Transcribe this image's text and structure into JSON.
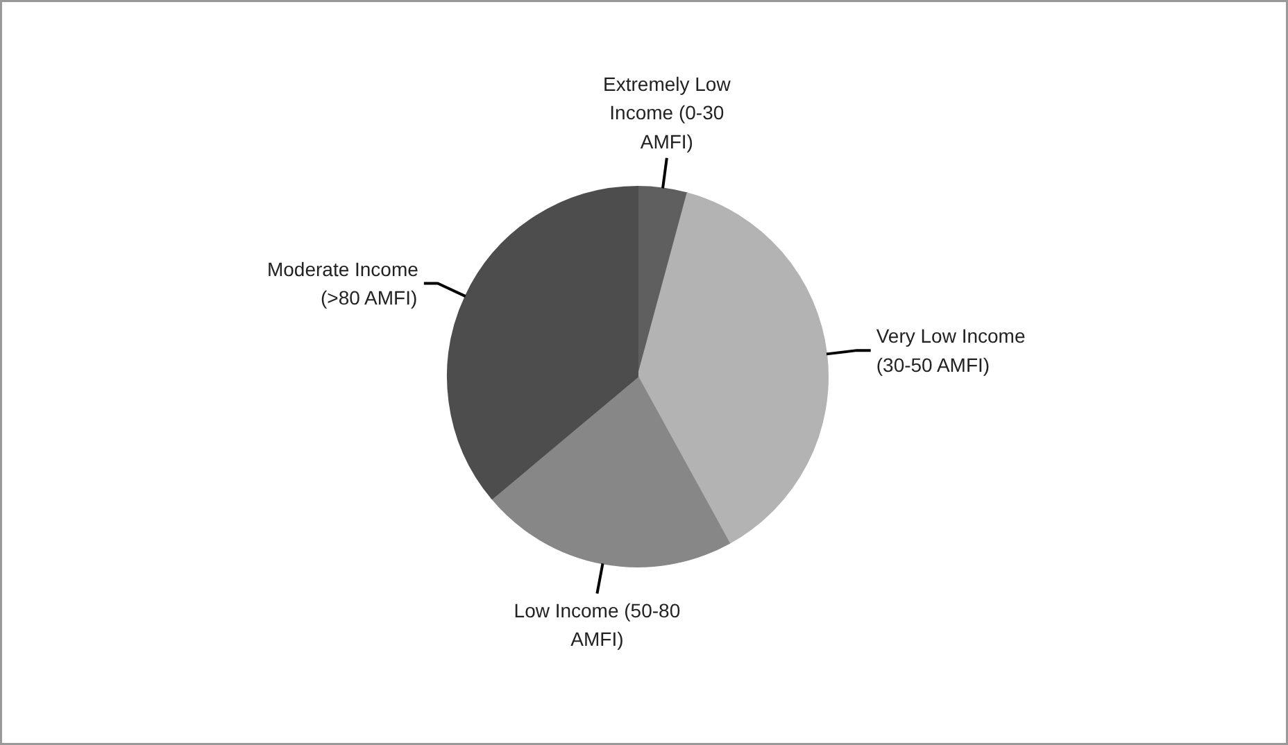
{
  "chart_data": {
    "type": "pie",
    "categories": [
      "Extremely Low Income (0-30 AMFI)",
      "Very Low Income (30-50 AMFI)",
      "Low Income (50-80 AMFI)",
      "Moderate Income (>80 AMFI)"
    ],
    "values": [
      4.2,
      37.8,
      21.9,
      36.1
    ],
    "colors": [
      "#5f5f5f",
      "#b3b3b3",
      "#878787",
      "#4d4d4d"
    ]
  }
}
